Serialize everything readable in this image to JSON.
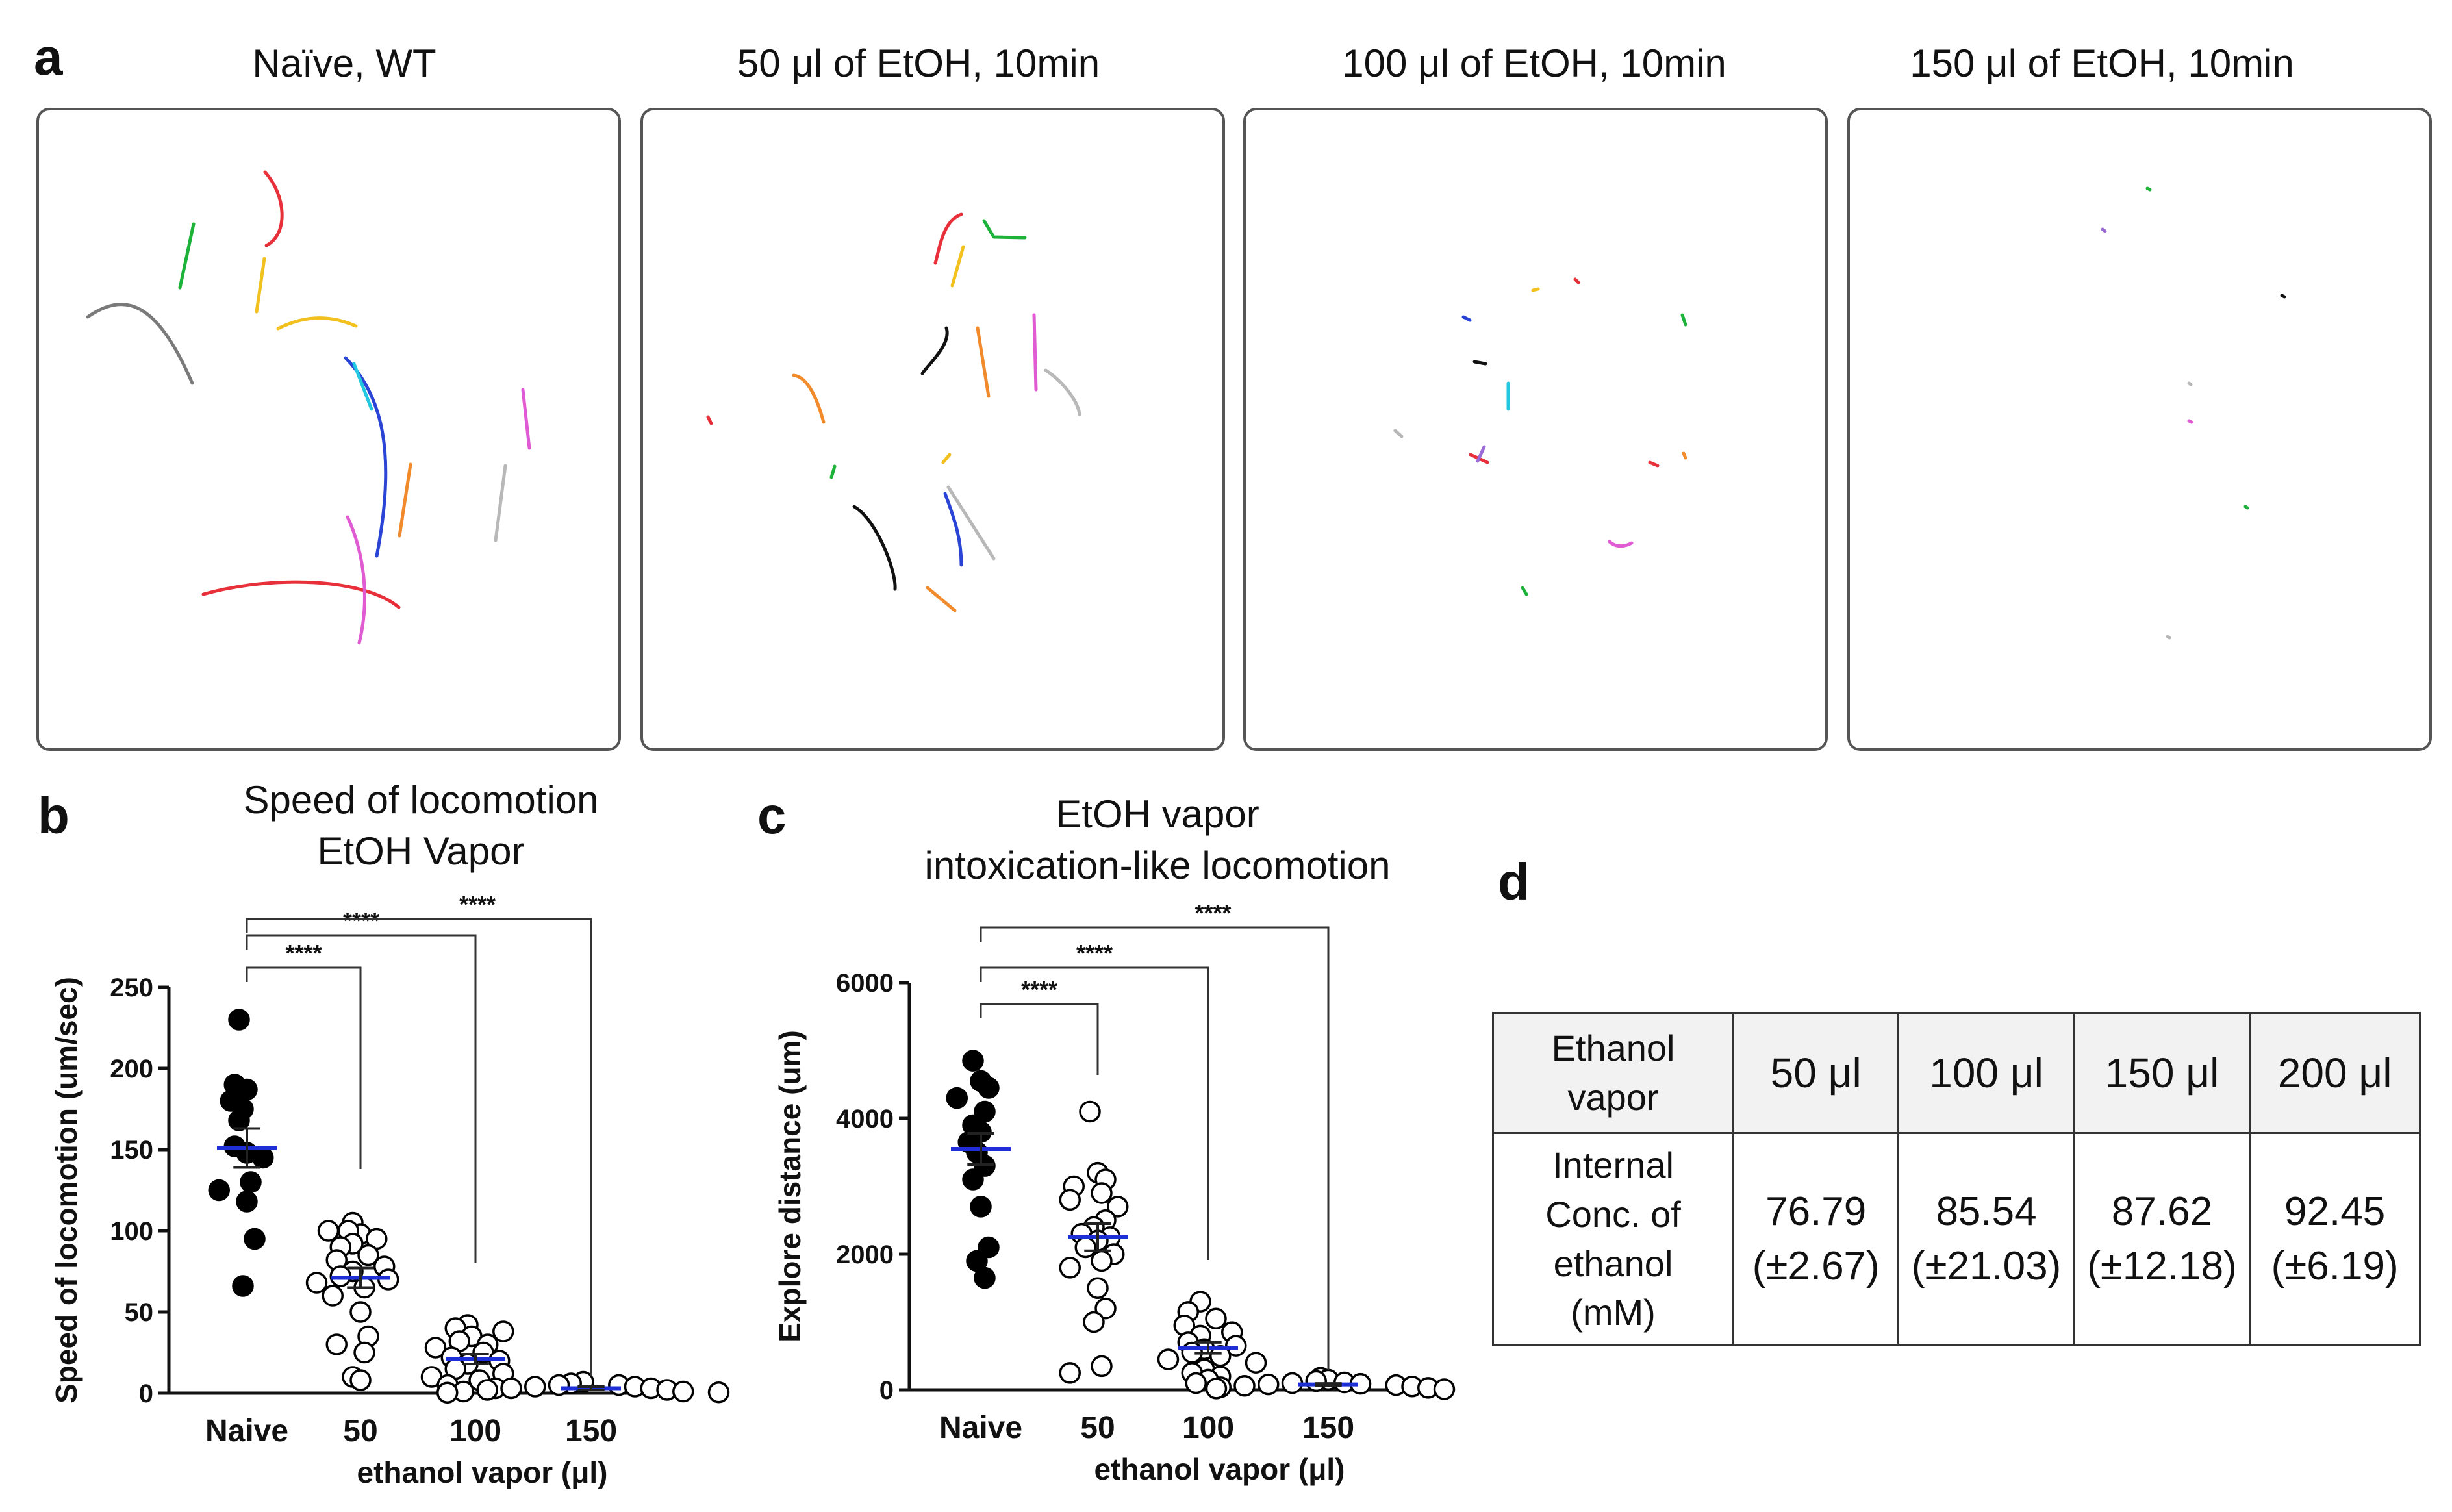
{
  "panel_labels": {
    "a": "a",
    "b": "b",
    "c": "c",
    "d": "d"
  },
  "panel_a": {
    "titles": [
      "Naïve, WT",
      "50 μl of EtOH, 10min",
      "100 μl of EtOH, 10min",
      "150 μl of EtOH, 10min"
    ],
    "description_colors": [
      "#e8303a",
      "#1db33a",
      "#f2c11f",
      "#7a7a7a",
      "#2a45d6",
      "#22c7e0",
      "#f08a2a",
      "#c74dd6",
      "#e05ad2",
      "#b8b8b8",
      "#111111",
      "#9a6bd4"
    ]
  },
  "panel_b": {
    "title_lines": [
      "Speed of locomotion",
      "EtOH Vapor"
    ]
  },
  "panel_c": {
    "title_lines": [
      "EtOH vapor",
      "intoxication-like locomotion"
    ]
  },
  "chart_data": [
    {
      "type": "scatter",
      "id": "b",
      "title": "Speed of locomotion EtOH Vapor",
      "xlabel": "ethanol vapor (μl)",
      "ylabel": "Speed of locomotion (um/sec)",
      "categories": [
        "Naive",
        "50",
        "100",
        "150"
      ],
      "ylim": [
        0,
        250
      ],
      "yticks": [
        0,
        50,
        100,
        150,
        200,
        250
      ],
      "series": [
        {
          "name": "Naive",
          "filled": true,
          "mean": 151,
          "sem": 12,
          "values": [
            230,
            187,
            190,
            175,
            180,
            168,
            148,
            152,
            145,
            130,
            125,
            118,
            95,
            66
          ]
        },
        {
          "name": "50",
          "filled": false,
          "mean": 71,
          "sem": 6,
          "values": [
            105,
            98,
            100,
            95,
            100,
            92,
            90,
            85,
            82,
            78,
            75,
            72,
            70,
            68,
            65,
            60,
            50,
            35,
            30,
            25,
            10,
            8
          ]
        },
        {
          "name": "100",
          "filled": false,
          "mean": 21,
          "sem": 3,
          "values": [
            42,
            40,
            38,
            35,
            32,
            30,
            28,
            25,
            22,
            20,
            18,
            15,
            12,
            10,
            8,
            5,
            3
          ]
        },
        {
          "name": "150",
          "filled": false,
          "mean": 3,
          "sem": 1,
          "values": [
            7,
            6,
            5,
            5,
            4,
            4,
            3,
            3,
            2,
            2,
            1,
            1,
            0.5,
            0.3
          ]
        }
      ],
      "significance": [
        {
          "from": "Naive",
          "to": "50",
          "label": "****"
        },
        {
          "from": "Naive",
          "to": "100",
          "label": "****"
        },
        {
          "from": "Naive",
          "to": "150",
          "label": "****"
        }
      ]
    },
    {
      "type": "scatter",
      "id": "c",
      "title": "EtOH vapor intoxication-like locomotion",
      "xlabel": "ethanol vapor (μl)",
      "ylabel": "Explore distance (um)",
      "categories": [
        "Naive",
        "50",
        "100",
        "150"
      ],
      "ylim": [
        0,
        6000
      ],
      "yticks": [
        0,
        2000,
        4000,
        6000
      ],
      "series": [
        {
          "name": "Naive",
          "filled": true,
          "mean": 3550,
          "sem": 230,
          "values": [
            4850,
            4550,
            4450,
            4300,
            4100,
            3900,
            3800,
            3650,
            3500,
            3300,
            3100,
            2700,
            2100,
            1900,
            1650
          ]
        },
        {
          "name": "50",
          "filled": false,
          "mean": 2250,
          "sem": 200,
          "values": [
            4100,
            3200,
            3100,
            3000,
            2900,
            2800,
            2700,
            2500,
            2400,
            2300,
            2250,
            2200,
            2100,
            2000,
            1900,
            1800,
            1500,
            1200,
            1000,
            350,
            250
          ]
        },
        {
          "name": "100",
          "filled": false,
          "mean": 620,
          "sem": 80,
          "values": [
            1300,
            1150,
            1050,
            950,
            850,
            800,
            700,
            650,
            600,
            550,
            500,
            450,
            400,
            300,
            250,
            200,
            150,
            100
          ]
        },
        {
          "name": "150",
          "filled": false,
          "mean": 80,
          "sem": 15,
          "values": [
            180,
            150,
            130,
            110,
            100,
            90,
            80,
            70,
            60,
            50,
            40,
            30,
            20,
            10
          ]
        }
      ],
      "significance": [
        {
          "from": "Naive",
          "to": "50",
          "label": "****"
        },
        {
          "from": "Naive",
          "to": "100",
          "label": "****"
        },
        {
          "from": "Naive",
          "to": "150",
          "label": "****"
        }
      ]
    },
    {
      "type": "table",
      "id": "d",
      "header": [
        "Ethanol vapor",
        "50 μl",
        "100 μl",
        "150 μl",
        "200 μl"
      ],
      "row_label": "Internal Conc. of ethanol (mM)",
      "values": [
        "76.79",
        "85.54",
        "87.62",
        "92.45"
      ],
      "sems": [
        "(±2.67)",
        "(±21.03)",
        "(±12.18)",
        "(±6.19)"
      ]
    }
  ]
}
